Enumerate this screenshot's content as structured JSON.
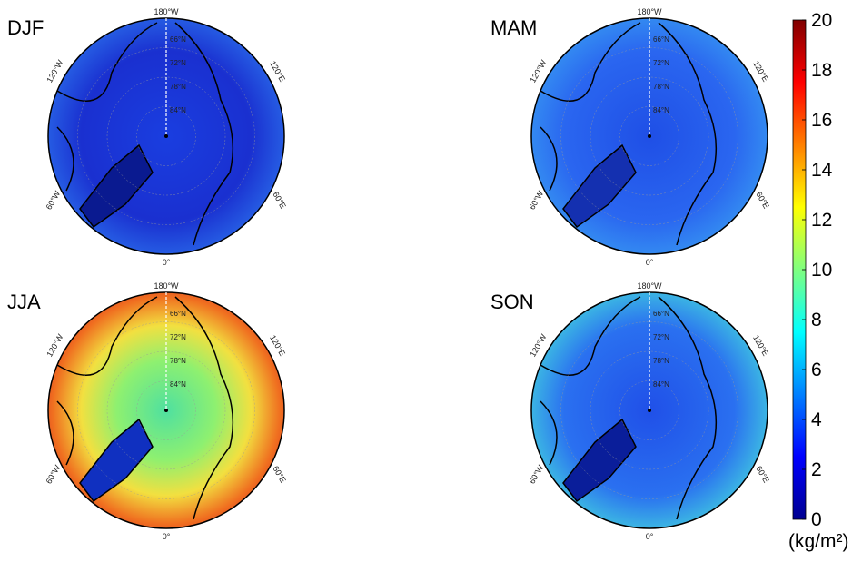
{
  "panels": [
    {
      "label": "DJF"
    },
    {
      "label": "MAM"
    },
    {
      "label": "JJA"
    },
    {
      "label": "SON"
    }
  ],
  "longitude_labels": {
    "top": "180°W",
    "upper_left": "120°W",
    "upper_right": "120°E",
    "lower_left": "60°W",
    "lower_right": "60°E",
    "bottom": "0°"
  },
  "latitude_labels": [
    "66°N",
    "72°N",
    "78°N",
    "84°N"
  ],
  "colorbar": {
    "lim": [
      0,
      20
    ],
    "ticks": [
      0,
      2,
      4,
      6,
      8,
      10,
      12,
      14,
      16,
      18,
      20
    ],
    "unit": "(kg/m²)"
  }
}
